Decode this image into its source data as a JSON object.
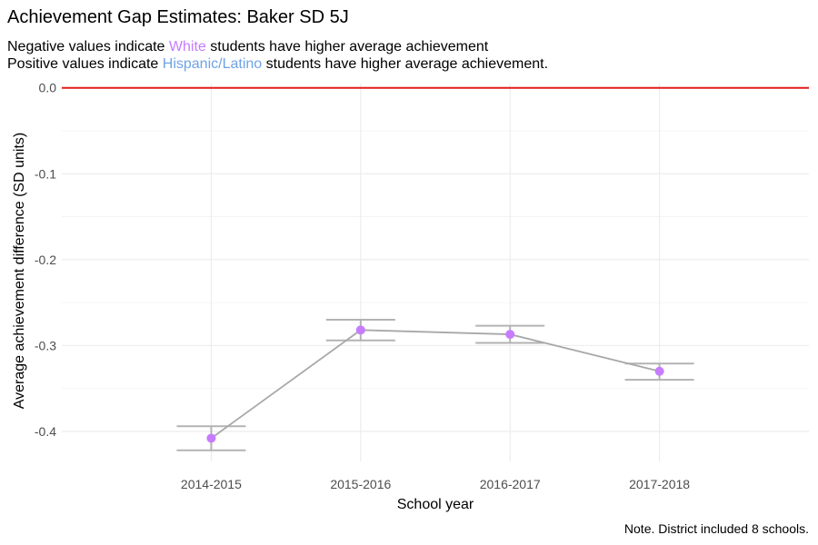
{
  "chart_data": {
    "type": "line",
    "title": "Achievement Gap Estimates: Baker SD 5J",
    "subtitle": {
      "line1": {
        "before": "Negative values indicate ",
        "highlight": "White",
        "after": " students have higher average achievement"
      },
      "line2": {
        "before": "Positive values indicate ",
        "highlight": "Hispanic/Latino",
        "after": " students have higher average achievement."
      }
    },
    "xlabel": "School year",
    "ylabel": "Average achievement difference (SD units)",
    "caption": "Note. District included 8 schools.",
    "categories": [
      "2014-2015",
      "2015-2016",
      "2016-2017",
      "2017-2018"
    ],
    "values": [
      -0.408,
      -0.282,
      -0.287,
      -0.33
    ],
    "error_low": [
      -0.422,
      -0.294,
      -0.297,
      -0.34
    ],
    "error_high": [
      -0.394,
      -0.27,
      -0.277,
      -0.321
    ],
    "ylim": [
      -0.435,
      0.005
    ],
    "y_ticks": [
      0.0,
      -0.1,
      -0.2,
      -0.3,
      -0.4
    ],
    "y_tick_labels": [
      "0.0",
      "-0.1",
      "-0.2",
      "-0.3",
      "-0.4"
    ],
    "reference_line": 0.0,
    "grid": true,
    "colors": {
      "white_highlight": "#c77cff",
      "hispanic_highlight": "#6fa3e6",
      "points": "#c77cff",
      "line": "#a8a8a8",
      "error_bars": "#b3b3b3",
      "reference_line": "#e31a1c"
    }
  }
}
